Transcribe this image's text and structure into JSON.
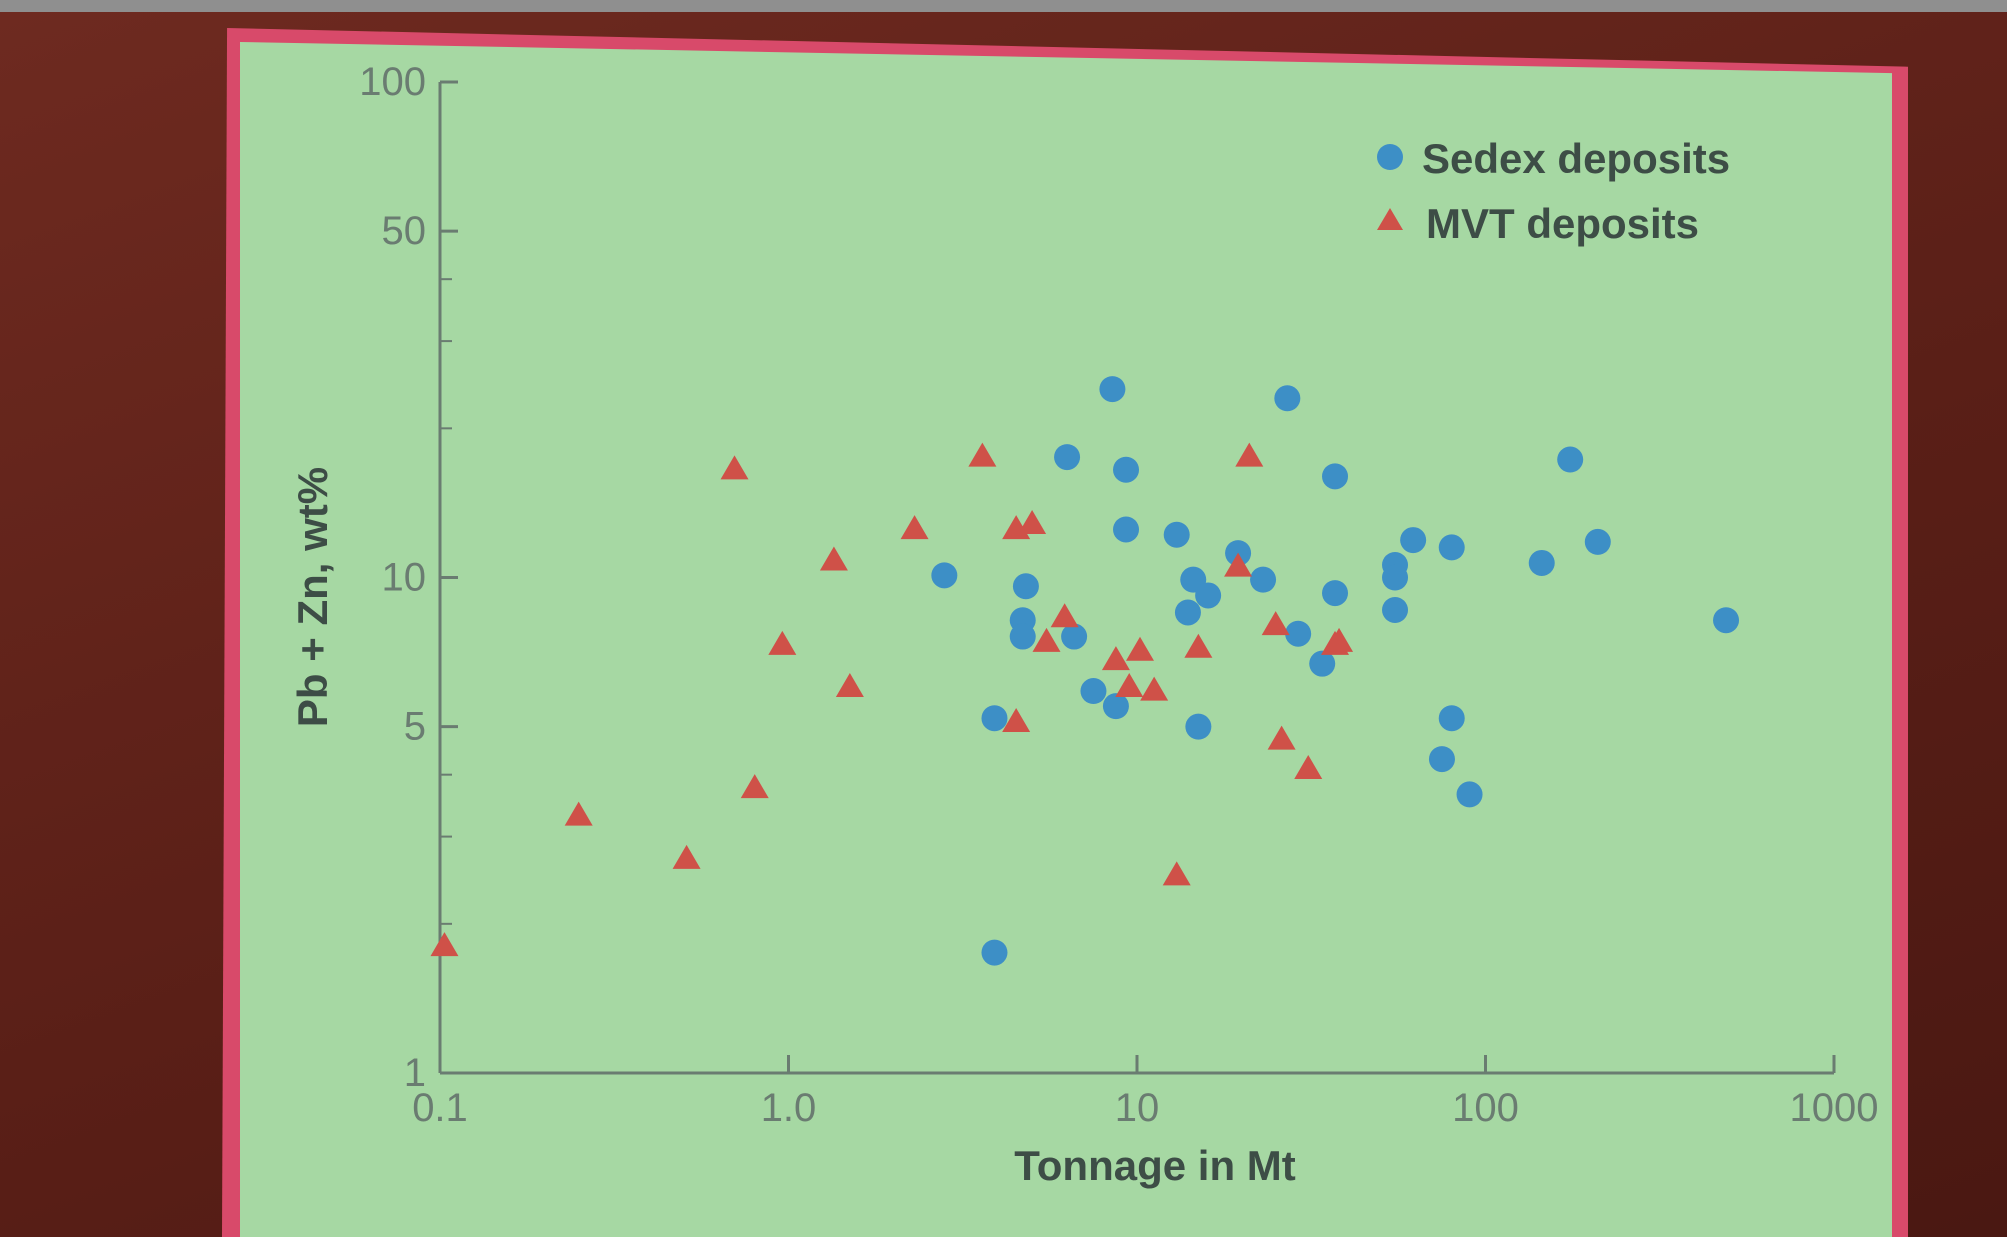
{
  "chart_data": {
    "type": "scatter",
    "x_scale": "log",
    "y_scale": "log",
    "xlim": [
      0.1,
      1000
    ],
    "ylim": [
      1,
      100
    ],
    "xlabel": "Tonnage in Mt",
    "ylabel": "Pb + Zn, wt%",
    "x_ticks": [
      "0.1",
      "1.0",
      "10",
      "100",
      "1000"
    ],
    "y_ticks": [
      "1",
      "5",
      "10",
      "50",
      "100"
    ],
    "legend_position": "top-right",
    "colors": {
      "sedex": "#3d8fc6",
      "mvt": "#cf5148",
      "background": "#a6d8a3",
      "axis": "#6a7c71"
    },
    "series": [
      {
        "name": "Sedex deposits",
        "marker": "circle",
        "points": [
          [
            8.5,
            24
          ],
          [
            27,
            23
          ],
          [
            6.3,
            17.5
          ],
          [
            9.3,
            16.5
          ],
          [
            37,
            16
          ],
          [
            175,
            17.3
          ],
          [
            9.3,
            12.5
          ],
          [
            13,
            12.2
          ],
          [
            19.5,
            11.2
          ],
          [
            62,
            11.9
          ],
          [
            80,
            11.5
          ],
          [
            210,
            11.8
          ],
          [
            145,
            10.7
          ],
          [
            2.8,
            10.1
          ],
          [
            14.5,
            9.9
          ],
          [
            23,
            9.9
          ],
          [
            55,
            10.6
          ],
          [
            55,
            10.0
          ],
          [
            4.8,
            9.6
          ],
          [
            16,
            9.2
          ],
          [
            37,
            9.3
          ],
          [
            14,
            8.5
          ],
          [
            55,
            8.6
          ],
          [
            4.7,
            8.2
          ],
          [
            490,
            8.2
          ],
          [
            4.7,
            7.6
          ],
          [
            6.6,
            7.6
          ],
          [
            29,
            7.7
          ],
          [
            34,
            6.7
          ],
          [
            7.5,
            5.9
          ],
          [
            8.7,
            5.5
          ],
          [
            3.9,
            5.2
          ],
          [
            15,
            5.0
          ],
          [
            80,
            5.2
          ],
          [
            75,
            4.3
          ],
          [
            90,
            3.65
          ],
          [
            3.9,
            1.75
          ]
        ]
      },
      {
        "name": "MVT deposits",
        "marker": "triangle",
        "points": [
          [
            0.7,
            16.5
          ],
          [
            3.6,
            17.5
          ],
          [
            21,
            17.5
          ],
          [
            2.3,
            12.5
          ],
          [
            4.5,
            12.5
          ],
          [
            5.0,
            12.8
          ],
          [
            1.35,
            10.8
          ],
          [
            19.5,
            10.5
          ],
          [
            6.2,
            8.3
          ],
          [
            25,
            8.0
          ],
          [
            0.96,
            7.3
          ],
          [
            5.5,
            7.4
          ],
          [
            10.2,
            7.1
          ],
          [
            8.7,
            6.8
          ],
          [
            15,
            7.2
          ],
          [
            37,
            7.3
          ],
          [
            38,
            7.4
          ],
          [
            1.5,
            6.0
          ],
          [
            9.5,
            6.0
          ],
          [
            11.2,
            5.9
          ],
          [
            4.5,
            5.1
          ],
          [
            26,
            4.7
          ],
          [
            31,
            4.1
          ],
          [
            0.8,
            3.75
          ],
          [
            0.25,
            3.3
          ],
          [
            0.51,
            2.7
          ],
          [
            13,
            2.5
          ],
          [
            0.103,
            1.8
          ]
        ]
      }
    ]
  }
}
